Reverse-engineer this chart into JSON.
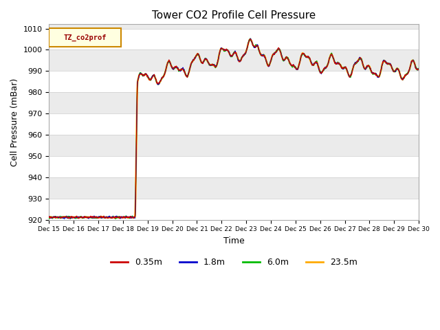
{
  "title": "Tower CO2 Profile Cell Pressure",
  "xlabel": "Time",
  "ylabel": "Cell Pressure (mBar)",
  "ylim": [
    920,
    1012
  ],
  "yticks": [
    920,
    930,
    940,
    950,
    960,
    970,
    980,
    990,
    1000,
    1010
  ],
  "legend_label": "TZ_co2prof",
  "series_labels": [
    "0.35m",
    "1.8m",
    "6.0m",
    "23.5m"
  ],
  "series_colors": [
    "#cc0000",
    "#0000cc",
    "#00bb00",
    "#ffaa00"
  ],
  "background_color": "#ebebeb",
  "fig_background": "#ffffff",
  "xtick_labels": [
    "Dec 15",
    "Dec 16",
    "Dec 17",
    "Dec 18",
    "Dec 19",
    "Dec 20",
    "Dec 21",
    "Dec 22",
    "Dec 23",
    "Dec 24",
    "Dec 25",
    "Dec 26",
    "Dec 27",
    "Dec 28",
    "Dec 29",
    "Dec 30"
  ]
}
